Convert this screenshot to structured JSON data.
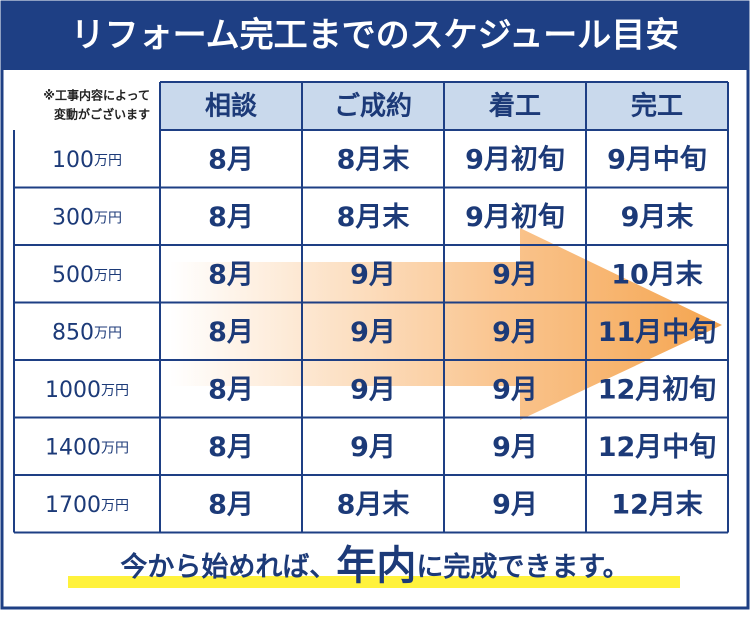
{
  "header": {
    "title": "リフォーム完工までのスケジュール目安"
  },
  "table": {
    "note": [
      "※工事内容によって",
      "変動がございます"
    ],
    "columns": [
      "相談",
      "ご成約",
      "着工",
      "完工"
    ],
    "rows": [
      {
        "amount": "100",
        "unit": "万円",
        "cells": [
          "8月",
          "8月末",
          "9月初旬",
          "9月中旬"
        ]
      },
      {
        "amount": "300",
        "unit": "万円",
        "cells": [
          "8月",
          "8月末",
          "9月初旬",
          "9月末"
        ]
      },
      {
        "amount": "500",
        "unit": "万円",
        "cells": [
          "8月",
          "9月",
          "9月",
          "10月末"
        ]
      },
      {
        "amount": "850",
        "unit": "万円",
        "cells": [
          "8月",
          "9月",
          "9月",
          "11月中旬"
        ]
      },
      {
        "amount": "1000",
        "unit": "万円",
        "cells": [
          "8月",
          "9月",
          "9月",
          "12月初旬"
        ]
      },
      {
        "amount": "1400",
        "unit": "万円",
        "cells": [
          "8月",
          "9月",
          "9月",
          "12月中旬"
        ]
      },
      {
        "amount": "1700",
        "unit": "万円",
        "cells": [
          "8月",
          "8月末",
          "9月",
          "12月末"
        ]
      }
    ]
  },
  "footer": {
    "parts": [
      "今から始めれば、",
      "年内",
      "に完成できます。"
    ]
  }
}
